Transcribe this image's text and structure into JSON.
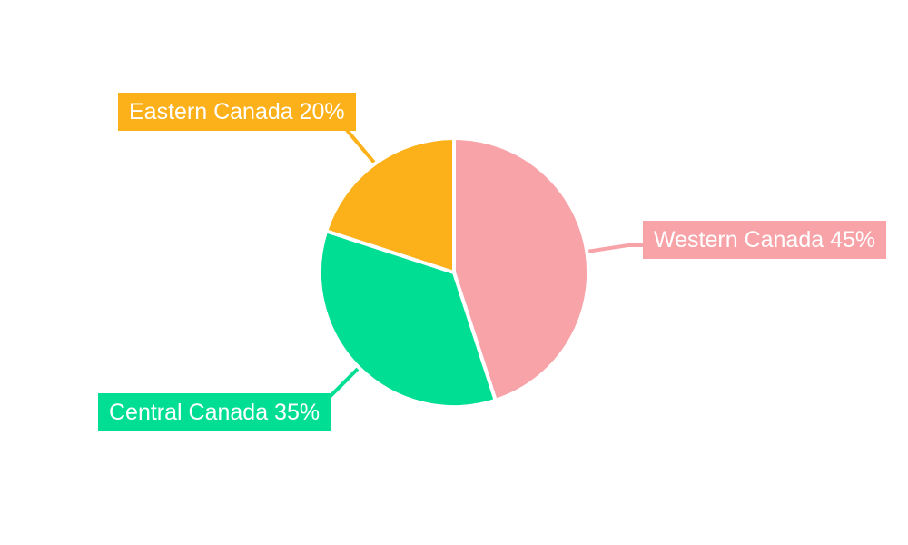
{
  "chart_data": {
    "type": "pie",
    "title": "",
    "legend": "none",
    "start_angle": "top",
    "direction": "clockwise",
    "labels_position": "outside-callout",
    "unit": "%",
    "background_color": "#FFFFFF",
    "label_text_color": "#FFFFFF",
    "slice_border_color": "#FFFFFF",
    "slices": [
      {
        "name": "Western Canada",
        "value": 45,
        "color": "#F7A3A8",
        "label": "Western Canada 45%"
      },
      {
        "name": "Central Canada",
        "value": 35,
        "color": "#00DE94",
        "label": "Central Canada 35%"
      },
      {
        "name": "Eastern Canada",
        "value": 20,
        "color": "#FCB11B",
        "label": "Eastern Canada 20%"
      }
    ]
  }
}
